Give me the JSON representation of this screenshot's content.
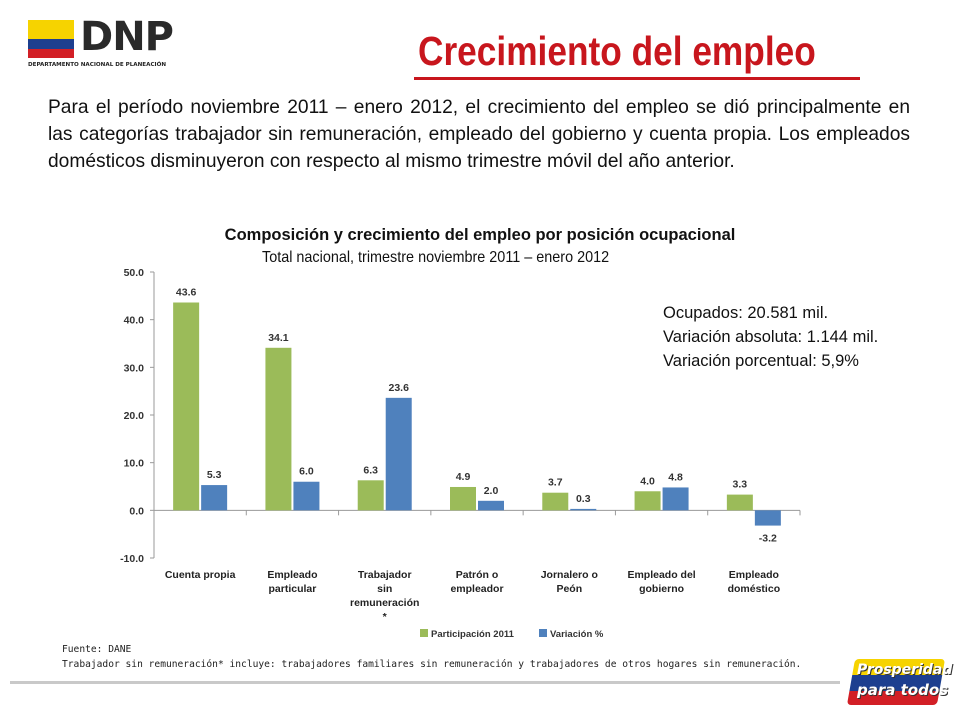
{
  "header": {
    "logo_text": "DNP",
    "logo_subtitle": "DEPARTAMENTO NACIONAL DE PLANEACIÓN",
    "title": "Crecimiento del empleo"
  },
  "intro_text": "Para el período noviembre 2011 – enero 2012, el crecimiento del empleo se dió principalmente en las categorías trabajador sin remuneración, empleado del gobierno y cuenta propia. Los empleados domésticos disminuyeron con respecto al mismo trimestre móvil del año anterior.",
  "stats": {
    "ocupados": "Ocupados:  20.581 mil.",
    "variacion_absoluta": "Variación absoluta: 1.144 mil.",
    "variacion_porcentual": "Variación porcentual: 5,9%"
  },
  "footer": {
    "source": "Fuente: DANE",
    "note": "Trabajador sin remuneración* incluye: trabajadores familiares sin remuneración y trabajadores de otros  hogares sin remuneración.",
    "brand_line1": "Prosperidad",
    "brand_line2": "para todos"
  },
  "chart_data": {
    "type": "bar",
    "title": "Composición y crecimiento del empleo por posición ocupacional",
    "subtitle": "Total nacional, trimestre   noviembre 2011 – enero 2012",
    "categories": [
      [
        "Cuenta propia"
      ],
      [
        "Empleado",
        "particular"
      ],
      [
        "Trabajador",
        "sin",
        "remuneración",
        "*"
      ],
      [
        "Patrón o",
        "empleador"
      ],
      [
        "Jornalero o",
        "Peón"
      ],
      [
        "Empleado del",
        "gobierno"
      ],
      [
        "Empleado",
        "doméstico"
      ]
    ],
    "series": [
      {
        "name": "Participación 2011",
        "color": "#9bbb59",
        "values": [
          43.6,
          34.1,
          6.3,
          4.9,
          3.7,
          4.0,
          3.3
        ]
      },
      {
        "name": "Variación %",
        "color": "#4f81bd",
        "values": [
          5.3,
          6.0,
          23.6,
          2.0,
          0.3,
          4.8,
          -3.2
        ]
      }
    ],
    "ylim": [
      -10,
      50
    ],
    "yticks": [
      "-10.0",
      "0.0",
      "10.0",
      "20.0",
      "30.0",
      "40.0",
      "50.0"
    ],
    "legend_position": "bottom",
    "grid": false
  }
}
